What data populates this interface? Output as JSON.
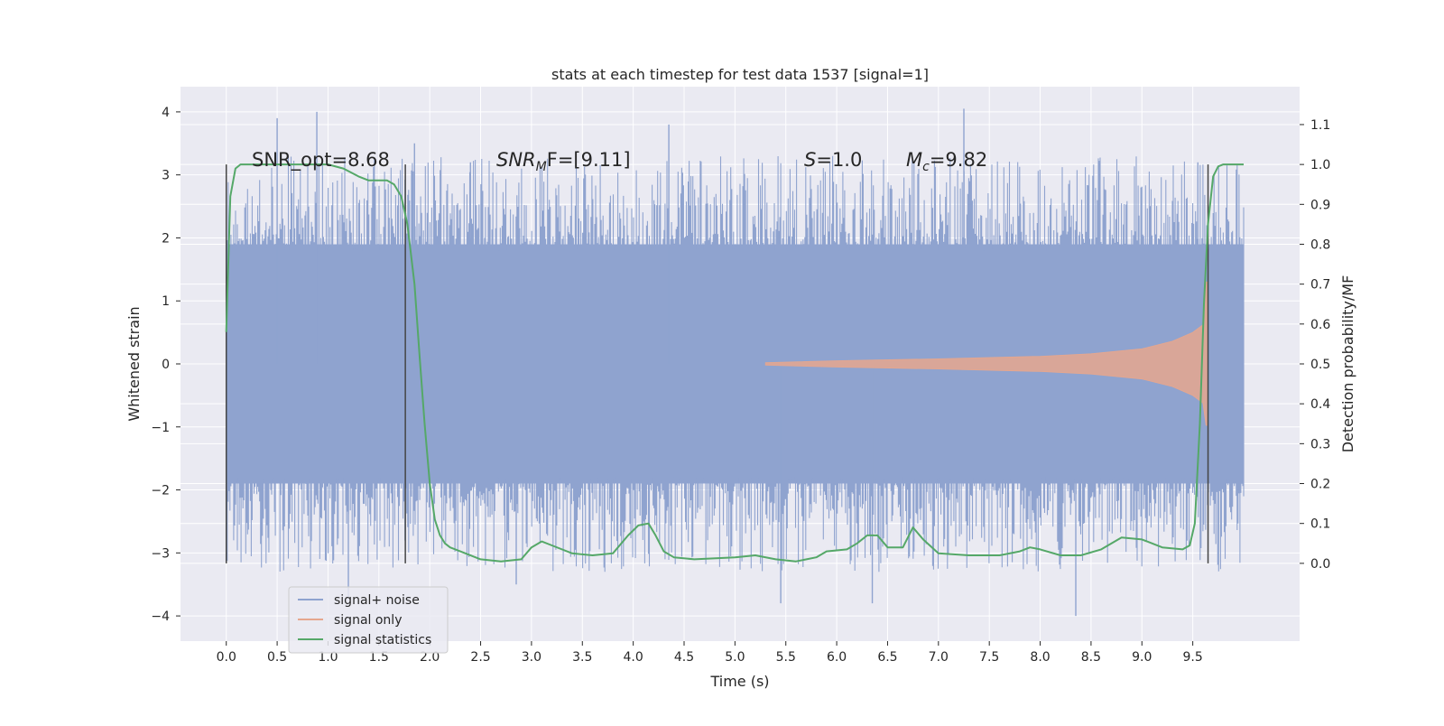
{
  "chart_data": {
    "type": "line",
    "title": "stats at each timestep for test data 1537 [signal=1]",
    "xlabel": "Time (s)",
    "ylabel": "Whitened strain",
    "y2label": "Detection probability/MF",
    "xlim": [
      -0.45,
      10.55
    ],
    "ylim": [
      -4.4,
      4.4
    ],
    "y2lim": [
      -0.195,
      1.195
    ],
    "x_ticks": [
      "0.0",
      "0.5",
      "1.0",
      "1.5",
      "2.0",
      "2.5",
      "3.0",
      "3.5",
      "4.0",
      "4.5",
      "5.0",
      "5.5",
      "6.0",
      "6.5",
      "7.0",
      "7.5",
      "8.0",
      "8.5",
      "9.0",
      "9.5"
    ],
    "y_ticks": [
      "−4",
      "−3",
      "−2",
      "−1",
      "0",
      "1",
      "2",
      "3",
      "4"
    ],
    "y2_ticks": [
      "0.0",
      "0.1",
      "0.2",
      "0.3",
      "0.4",
      "0.5",
      "0.6",
      "0.7",
      "0.8",
      "0.9",
      "1.0",
      "1.1"
    ],
    "grid": true,
    "legend_position": "lower-left",
    "annotations": {
      "snr_opt": "SNR_opt=8.68",
      "snr_mf_main": "SNR",
      "snr_mf_sub": "M",
      "snr_mf_rest": "F=[9.11]",
      "s_main": "S",
      "s_rest": "=1.0",
      "mc_main": "M",
      "mc_sub": "c",
      "mc_rest": "=9.82"
    },
    "vertical_markers_x": [
      0.0,
      1.76,
      9.65
    ],
    "series": [
      {
        "name": "signal+ noise",
        "color": "#8fa3cf",
        "x_range": [
          0.0,
          10.0
        ],
        "band_y": [
          -1.9,
          1.9
        ],
        "peaks": [
          {
            "x": 0.5,
            "y": 3.9
          },
          {
            "x": 0.89,
            "y": 4.0
          },
          {
            "x": 1.2,
            "y": -3.7
          },
          {
            "x": 1.85,
            "y": 3.5
          },
          {
            "x": 2.4,
            "y": 3.2
          },
          {
            "x": 2.85,
            "y": -3.5
          },
          {
            "x": 4.35,
            "y": 3.8
          },
          {
            "x": 5.45,
            "y": -3.8
          },
          {
            "x": 6.35,
            "y": -3.8
          },
          {
            "x": 7.25,
            "y": 4.05
          },
          {
            "x": 8.35,
            "y": -4.0
          },
          {
            "x": 9.55,
            "y": 3.2
          }
        ]
      },
      {
        "name": "signal only",
        "color": "#e6a78e",
        "envelope": [
          {
            "x": 5.3,
            "a": 0.02
          },
          {
            "x": 6.0,
            "a": 0.05
          },
          {
            "x": 7.0,
            "a": 0.08
          },
          {
            "x": 8.0,
            "a": 0.12
          },
          {
            "x": 8.5,
            "a": 0.16
          },
          {
            "x": 9.0,
            "a": 0.24
          },
          {
            "x": 9.3,
            "a": 0.36
          },
          {
            "x": 9.5,
            "a": 0.5
          },
          {
            "x": 9.6,
            "a": 0.62
          },
          {
            "x": 9.63,
            "a": 1.3
          },
          {
            "x": 9.65,
            "a": 1.3
          }
        ]
      },
      {
        "name": "signal statistics",
        "color": "#55a868",
        "x": [
          0.0,
          0.04,
          0.09,
          0.14,
          0.2,
          0.3,
          0.5,
          0.8,
          1.0,
          1.15,
          1.3,
          1.4,
          1.5,
          1.58,
          1.65,
          1.72,
          1.78,
          1.85,
          1.9,
          1.95,
          2.0,
          2.05,
          2.1,
          2.15,
          2.2,
          2.3,
          2.5,
          2.7,
          2.9,
          3.0,
          3.1,
          3.2,
          3.4,
          3.6,
          3.8,
          3.95,
          4.05,
          4.15,
          4.22,
          4.3,
          4.4,
          4.6,
          5.0,
          5.2,
          5.4,
          5.6,
          5.8,
          5.9,
          6.1,
          6.2,
          6.3,
          6.4,
          6.5,
          6.65,
          6.75,
          6.85,
          7.0,
          7.3,
          7.6,
          7.8,
          7.9,
          8.0,
          8.2,
          8.4,
          8.6,
          8.8,
          9.0,
          9.2,
          9.4,
          9.47,
          9.52,
          9.57,
          9.61,
          9.65,
          9.7,
          9.75,
          9.8,
          9.85,
          9.9,
          10.0
        ],
        "y": [
          0.58,
          0.92,
          0.99,
          1.0,
          1.0,
          1.0,
          1.0,
          1.0,
          1.0,
          0.99,
          0.97,
          0.96,
          0.96,
          0.96,
          0.95,
          0.92,
          0.85,
          0.7,
          0.52,
          0.35,
          0.2,
          0.11,
          0.07,
          0.05,
          0.04,
          0.03,
          0.01,
          0.005,
          0.01,
          0.04,
          0.055,
          0.045,
          0.025,
          0.02,
          0.025,
          0.07,
          0.095,
          0.1,
          0.07,
          0.03,
          0.015,
          0.01,
          0.015,
          0.02,
          0.01,
          0.005,
          0.015,
          0.03,
          0.035,
          0.05,
          0.07,
          0.07,
          0.04,
          0.04,
          0.09,
          0.06,
          0.025,
          0.02,
          0.02,
          0.03,
          0.04,
          0.035,
          0.02,
          0.02,
          0.035,
          0.065,
          0.06,
          0.04,
          0.035,
          0.045,
          0.1,
          0.35,
          0.65,
          0.85,
          0.97,
          0.995,
          1.0,
          1.0,
          1.0,
          1.0
        ]
      }
    ]
  }
}
